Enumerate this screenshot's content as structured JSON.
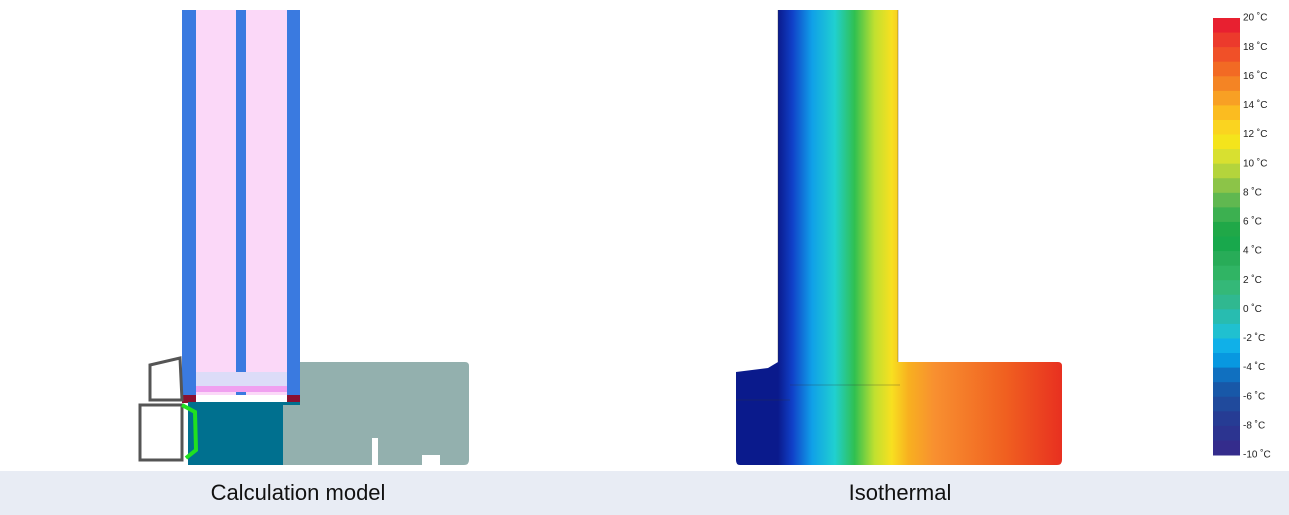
{
  "captions": {
    "left": "Calculation model",
    "right": "Isothermal"
  },
  "legend": {
    "labels": [
      "20 ˚C",
      "18 ˚C",
      "16 ˚C",
      "14 ˚C",
      "12 ˚C",
      "10 ˚C",
      "8 ˚C",
      "6 ˚C",
      "4 ˚C",
      "2 ˚C",
      "0 ˚C",
      "-2 ˚C",
      "-4 ˚C",
      "-6 ˚C",
      "-8 ˚C",
      "-10 ˚C"
    ]
  }
}
